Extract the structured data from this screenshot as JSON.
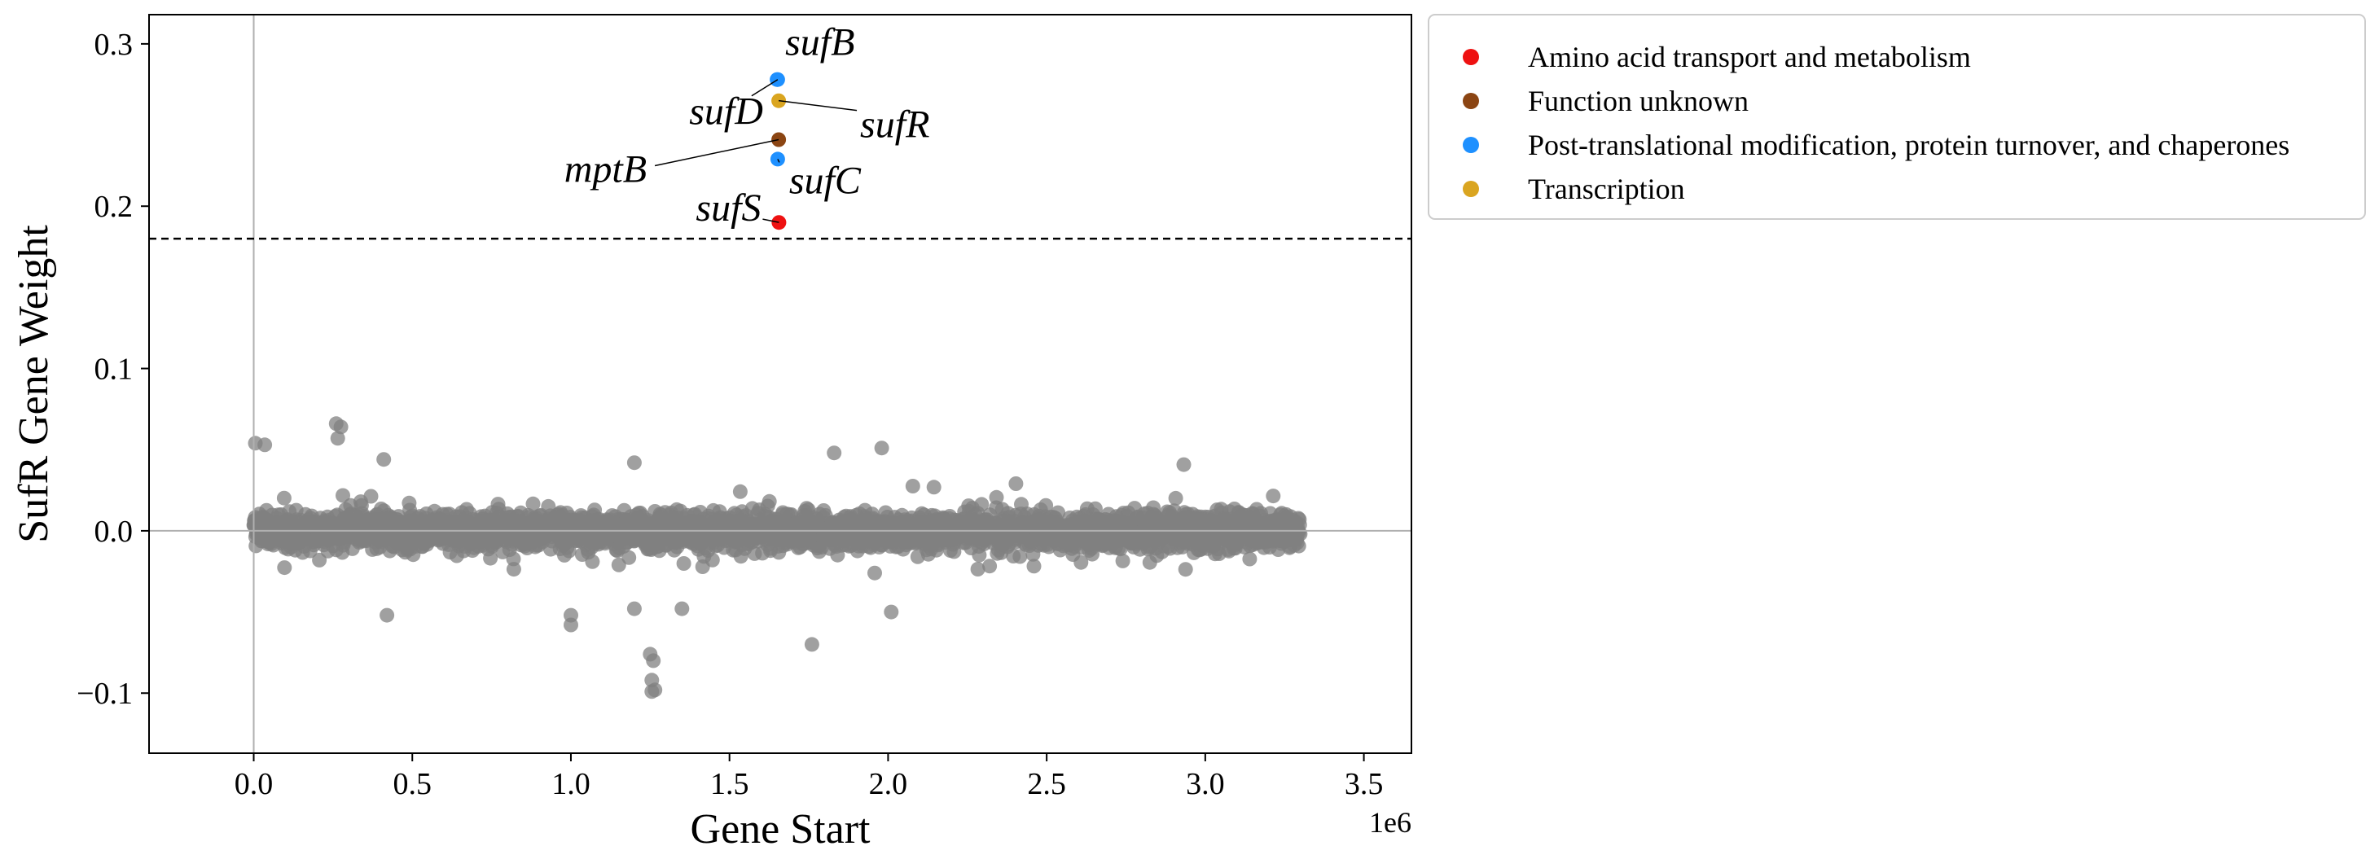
{
  "chart_data": {
    "type": "scatter",
    "title": "",
    "xlabel": "Gene Start",
    "ylabel": "SufR Gene Weight",
    "x_exponent_label": "1e6",
    "xlim": [
      -330000,
      3650000
    ],
    "ylim": [
      -0.137,
      0.318
    ],
    "x_ticks": [
      0,
      500000,
      1000000,
      1500000,
      2000000,
      2500000,
      3000000,
      3500000
    ],
    "x_tick_labels": [
      "0.0",
      "0.5",
      "1.0",
      "1.5",
      "2.0",
      "2.5",
      "3.0",
      "3.5"
    ],
    "y_ticks": [
      -0.1,
      0.0,
      0.1,
      0.2,
      0.3
    ],
    "y_tick_labels": [
      "−0.1",
      "0.0",
      "0.1",
      "0.2",
      "0.3"
    ],
    "threshold_y": 0.18,
    "zero_lines": true,
    "legend_placement": "outside-upper-right",
    "background_series": {
      "color": "#808080",
      "x_range": [
        0,
        3300000
      ],
      "note_points": [
        {
          "x": 5000,
          "y": 0.054
        },
        {
          "x": 35000,
          "y": 0.053
        },
        {
          "x": 260000,
          "y": 0.066
        },
        {
          "x": 275000,
          "y": 0.064
        },
        {
          "x": 265000,
          "y": 0.057
        },
        {
          "x": 410000,
          "y": 0.044
        },
        {
          "x": 1000000,
          "y": -0.052
        },
        {
          "x": 1000000,
          "y": -0.058
        },
        {
          "x": 1250000,
          "y": -0.076
        },
        {
          "x": 1260000,
          "y": -0.08
        },
        {
          "x": 1255000,
          "y": -0.092
        },
        {
          "x": 1265000,
          "y": -0.098
        },
        {
          "x": 1255000,
          "y": -0.099
        },
        {
          "x": 1760000,
          "y": -0.07
        },
        {
          "x": 1980000,
          "y": 0.051
        },
        {
          "x": 1830000,
          "y": 0.048
        },
        {
          "x": 2010000,
          "y": -0.05
        },
        {
          "x": 1200000,
          "y": -0.048
        },
        {
          "x": 1350000,
          "y": -0.048
        },
        {
          "x": 420000,
          "y": -0.052
        },
        {
          "x": 1200000,
          "y": 0.042
        }
      ]
    },
    "highlighted_points": [
      {
        "label": "sufB",
        "x": 1650000,
        "y": 0.278,
        "category": "Post-translational modification, protein turnover, and chaperones"
      },
      {
        "label": "sufR",
        "x": 1655000,
        "y": 0.265,
        "category": "Transcription"
      },
      {
        "label": "sufD",
        "x": 1652000,
        "y": 0.278,
        "category": "Post-translational modification, protein turnover, and chaperones"
      },
      {
        "label": "mptB",
        "x": 1655000,
        "y": 0.241,
        "category": "Function unknown"
      },
      {
        "label": "sufC",
        "x": 1652000,
        "y": 0.229,
        "category": "Post-translational modification, protein turnover, and chaperones"
      },
      {
        "label": "sufS",
        "x": 1656000,
        "y": 0.19,
        "category": "Amino acid transport and metabolism"
      }
    ],
    "legend": [
      {
        "name": "Amino acid transport and metabolism",
        "color": "#ee1111"
      },
      {
        "name": "Function unknown",
        "color": "#8b4513"
      },
      {
        "name": "Post-translational modification, protein turnover, and chaperones",
        "color": "#1e90ff"
      },
      {
        "name": "Transcription",
        "color": "#daa520"
      }
    ]
  }
}
